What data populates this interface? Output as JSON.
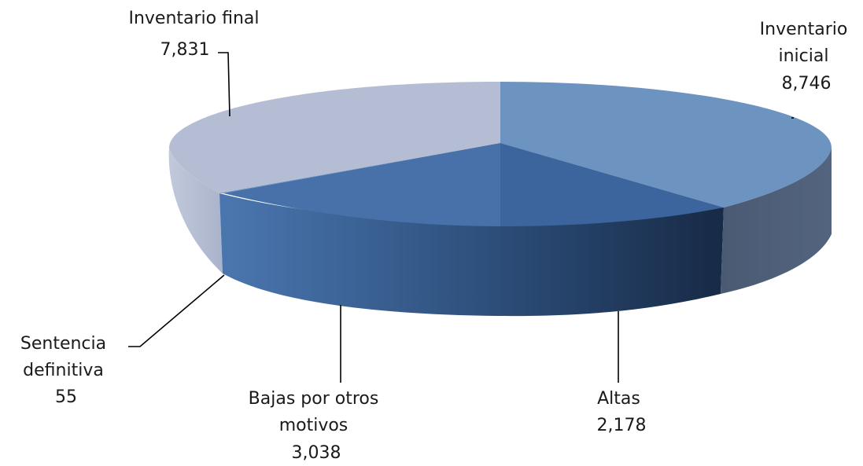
{
  "chart_data": {
    "type": "pie",
    "style": "3d",
    "title": "",
    "slices": [
      {
        "label": "Inventario inicial",
        "label_lines": [
          "Inventario",
          "inicial"
        ],
        "value": 8746,
        "display": "8,746",
        "color": "#6d93c0"
      },
      {
        "label": "Altas",
        "label_lines": [
          "Altas"
        ],
        "value": 2178,
        "display": "2,178",
        "color": "#3b659c"
      },
      {
        "label": "Bajas por otros motivos",
        "label_lines": [
          "Bajas por otros",
          "motivos"
        ],
        "value": 3038,
        "display": "3,038",
        "color": "#4771a8"
      },
      {
        "label": "Sentencia definitiva",
        "label_lines": [
          "Sentencia",
          "definitiva"
        ],
        "value": 55,
        "display": "55",
        "color": "#5a86bc"
      },
      {
        "label": "Inventario final",
        "label_lines": [
          "Inventario final"
        ],
        "value": 7831,
        "display": "7,831",
        "color": "#b4bdd3"
      }
    ]
  }
}
